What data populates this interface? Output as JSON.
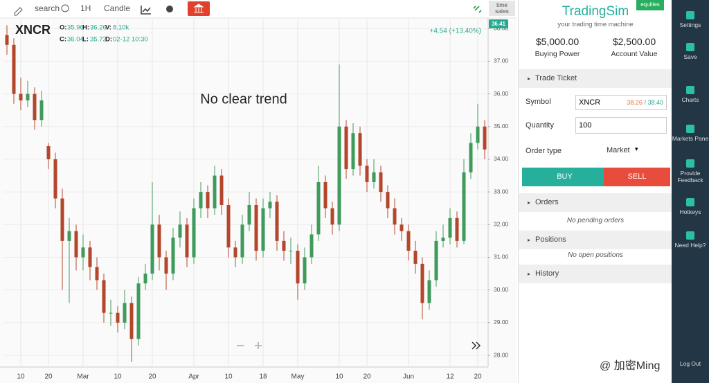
{
  "toolbar": {
    "search": "search",
    "interval": "1H",
    "chart_style": "Candle",
    "time_sales": "time sales"
  },
  "chart_header": {
    "symbol": "XNCR",
    "ohlc": [
      {
        "label": "O:",
        "value": "35.96"
      },
      {
        "label": "H:",
        "value": "36.26"
      },
      {
        "label": "V:",
        "value": "8.10k"
      },
      {
        "label": "C:",
        "value": "36.04"
      },
      {
        "label": "L:",
        "value": "35.72"
      },
      {
        "label": "D:",
        "value": "02-12 10:30"
      }
    ],
    "change": "+4.54 (+13.40%)",
    "last_price": "36.41"
  },
  "chart_data": {
    "type": "candlestick",
    "annotation": "No clear trend",
    "up_color": "#3f9b5c",
    "down_color": "#b3462b",
    "open": [
      37.8,
      37.5,
      36,
      35.8,
      36,
      35.2,
      34.4,
      34,
      32.8,
      31.5,
      31.8,
      31,
      31.3,
      30.7,
      30.3,
      29.3,
      29.3,
      29,
      29.6,
      28.5,
      30.2,
      30.5,
      32,
      31,
      30.5,
      31.6,
      32,
      31,
      32.5,
      33,
      32.5,
      33.5,
      32.6,
      31.3,
      31,
      32,
      32.6,
      31.2,
      32.5,
      32.7,
      31.5,
      31.2,
      31.2,
      30.2,
      31,
      31.7,
      33.3,
      32.5,
      32,
      35,
      33.7,
      34.8,
      33.8,
      33.3,
      33.6,
      33,
      32.5,
      32,
      31.8,
      31.2,
      30.8,
      29.6,
      30.3,
      31.5,
      31.6,
      32.2,
      31.5,
      33.6,
      34.5,
      35
    ],
    "high": [
      38.1,
      37.7,
      36.5,
      36.4,
      36.2,
      36.1,
      34.5,
      34.2,
      33.1,
      32.2,
      32,
      31.7,
      31.5,
      31,
      30.5,
      29.7,
      29.5,
      30,
      29.8,
      30.4,
      30.8,
      33.3,
      32.3,
      31.2,
      31.9,
      32.4,
      32.2,
      32.8,
      33.3,
      33.2,
      33.8,
      33.7,
      32.8,
      31.5,
      32.3,
      33,
      32.8,
      32.8,
      33,
      32.9,
      31.8,
      31.6,
      31.4,
      31.3,
      32,
      33.8,
      33.5,
      32.7,
      36.9,
      35.2,
      35.1,
      35,
      34,
      34,
      33.8,
      33.2,
      32.8,
      32.2,
      32,
      31.5,
      31,
      30.6,
      31.8,
      32,
      32.5,
      32.4,
      34,
      34.8,
      35.7,
      35.2
    ],
    "low": [
      37.2,
      35.7,
      35.5,
      35.6,
      34.9,
      35,
      33.7,
      32.5,
      30,
      29.6,
      30.6,
      30.6,
      30.3,
      30,
      29,
      28.9,
      28.7,
      28.8,
      27.8,
      28.3,
      30,
      30.3,
      30.6,
      30,
      30.3,
      31.3,
      30.7,
      30.8,
      32.2,
      32.2,
      32.3,
      32.3,
      31,
      30.7,
      30.8,
      31.8,
      30.9,
      31,
      32.2,
      31.2,
      30.9,
      30.8,
      29.7,
      30,
      30.8,
      31.5,
      32.2,
      31.7,
      31.8,
      33.4,
      33.5,
      33.5,
      33,
      33.1,
      32.7,
      32.2,
      31.7,
      31.5,
      30.9,
      30.5,
      29.1,
      29.4,
      30.1,
      31.3,
      31.4,
      31.3,
      31.4,
      33.4,
      34.3,
      34
    ],
    "close": [
      37.5,
      36,
      35.8,
      36,
      35.2,
      35.8,
      34,
      32.8,
      31.5,
      31.8,
      31,
      31.3,
      30.7,
      30.3,
      29.3,
      29.3,
      29,
      29.6,
      28.5,
      30.2,
      30.5,
      32,
      31,
      30.5,
      31.6,
      32,
      31,
      32.5,
      33,
      32.5,
      33.5,
      32.6,
      31.3,
      31,
      32,
      32.6,
      31.2,
      32.5,
      32.7,
      31.5,
      31.2,
      31.2,
      30.2,
      31,
      31.7,
      33.3,
      32.5,
      32,
      35,
      33.7,
      34.8,
      33.8,
      33.3,
      33.6,
      33,
      32.5,
      32,
      31.8,
      31.2,
      30.8,
      29.6,
      30.3,
      31.5,
      31.6,
      32.2,
      31.5,
      33.6,
      34.5,
      35,
      34.3
    ],
    "xlim": [
      -0.5,
      69.5
    ],
    "xticks": [
      {
        "value": 2,
        "label": "10"
      },
      {
        "value": 6,
        "label": "20"
      },
      {
        "value": 11,
        "label": "Mar"
      },
      {
        "value": 16,
        "label": "10"
      },
      {
        "value": 21,
        "label": "20"
      },
      {
        "value": 27,
        "label": "Apr"
      },
      {
        "value": 32,
        "label": "10"
      },
      {
        "value": 37,
        "label": "18"
      },
      {
        "value": 42,
        "label": "May"
      },
      {
        "value": 48,
        "label": "10"
      },
      {
        "value": 52,
        "label": "20"
      },
      {
        "value": 58,
        "label": "Jun"
      },
      {
        "value": 64,
        "label": "12"
      },
      {
        "value": 68,
        "label": "20"
      }
    ],
    "ylim": [
      27.64,
      38.28
    ],
    "yticks": [
      {
        "value": 28,
        "label": "28.00"
      },
      {
        "value": 29,
        "label": "29.00"
      },
      {
        "value": 30,
        "label": "30.00"
      },
      {
        "value": 31,
        "label": "31.00"
      },
      {
        "value": 32,
        "label": "32.00"
      },
      {
        "value": 33,
        "label": "33.00"
      },
      {
        "value": 34,
        "label": "34.00"
      },
      {
        "value": 35,
        "label": "35.00"
      },
      {
        "value": 36,
        "label": "36.00"
      },
      {
        "value": 37,
        "label": "37.00"
      },
      {
        "value": 38,
        "label": "38.00"
      }
    ],
    "grid": true
  },
  "panel": {
    "brand": "TradingSim",
    "badge": "equities",
    "tagline": "your trading time machine",
    "buying_power": {
      "value": "$5,000.00",
      "label": "Buying Power"
    },
    "account_value": {
      "value": "$2,500.00",
      "label": "Account Value"
    },
    "trade_ticket": "Trade Ticket",
    "symbol_label": "Symbol",
    "symbol": "XNCR",
    "bid": "38.26",
    "sep": "/",
    "ask": "38.40",
    "quantity_label": "Quantity",
    "quantity": "100",
    "order_type_label": "Order type",
    "order_type": "Market",
    "buy": "BUY",
    "sell": "SELL",
    "orders": "Orders",
    "orders_empty": "No pending orders",
    "positions": "Positions",
    "positions_empty": "No open positions",
    "history": "History"
  },
  "sidebar": [
    "Settings",
    "Save",
    "Charts",
    "Markets Pane",
    "Provide Feedback",
    "Hotkeys",
    "Need Help?",
    "Log Out"
  ],
  "watermark": "@ 加密Ming"
}
